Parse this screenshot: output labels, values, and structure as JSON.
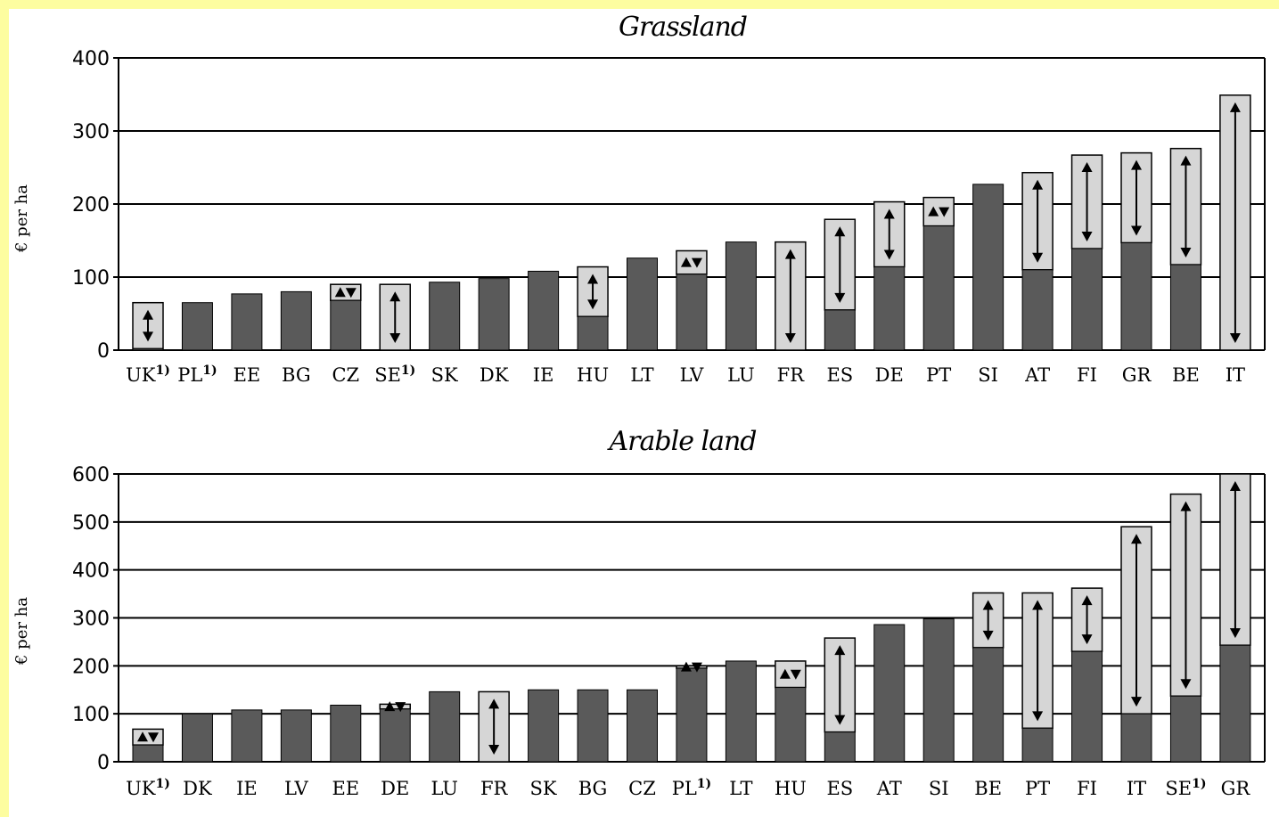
{
  "chart_data": [
    {
      "type": "bar",
      "title": "Grassland",
      "ylabel": "€ per ha",
      "ylim": [
        0,
        400
      ],
      "yticks": [
        0,
        100,
        200,
        300,
        400
      ],
      "grid": true,
      "categories": [
        {
          "label": "UK",
          "sup": "1)",
          "min": 2,
          "max": 65
        },
        {
          "label": "PL",
          "sup": "1)",
          "min": 65,
          "max": 65
        },
        {
          "label": "EE",
          "sup": "",
          "min": 77,
          "max": 77
        },
        {
          "label": "BG",
          "sup": "",
          "min": 80,
          "max": 80
        },
        {
          "label": "CZ",
          "sup": "",
          "min": 68,
          "max": 90
        },
        {
          "label": "SE",
          "sup": "1)",
          "min": 0,
          "max": 90
        },
        {
          "label": "SK",
          "sup": "",
          "min": 93,
          "max": 93
        },
        {
          "label": "DK",
          "sup": "",
          "min": 98,
          "max": 98
        },
        {
          "label": "IE",
          "sup": "",
          "min": 108,
          "max": 108
        },
        {
          "label": "HU",
          "sup": "",
          "min": 46,
          "max": 114
        },
        {
          "label": "LT",
          "sup": "",
          "min": 126,
          "max": 126
        },
        {
          "label": "LV",
          "sup": "",
          "min": 104,
          "max": 136
        },
        {
          "label": "LU",
          "sup": "",
          "min": 148,
          "max": 148
        },
        {
          "label": "FR",
          "sup": "",
          "min": 0,
          "max": 148
        },
        {
          "label": "ES",
          "sup": "",
          "min": 55,
          "max": 179
        },
        {
          "label": "DE",
          "sup": "",
          "min": 114,
          "max": 203
        },
        {
          "label": "PT",
          "sup": "",
          "min": 170,
          "max": 209
        },
        {
          "label": "SI",
          "sup": "",
          "min": 227,
          "max": 227
        },
        {
          "label": "AT",
          "sup": "",
          "min": 110,
          "max": 243
        },
        {
          "label": "FI",
          "sup": "",
          "min": 139,
          "max": 267
        },
        {
          "label": "GR",
          "sup": "",
          "min": 147,
          "max": 270
        },
        {
          "label": "BE",
          "sup": "",
          "min": 117,
          "max": 276
        },
        {
          "label": "IT",
          "sup": "",
          "min": 0,
          "max": 349
        }
      ]
    },
    {
      "type": "bar",
      "title": "Arable land",
      "ylabel": "€ per ha",
      "ylim": [
        0,
        600
      ],
      "yticks": [
        0,
        100,
        200,
        300,
        400,
        500,
        600
      ],
      "grid": true,
      "categories": [
        {
          "label": "UK",
          "sup": "1)",
          "min": 35,
          "max": 68
        },
        {
          "label": "DK",
          "sup": "",
          "min": 100,
          "max": 100
        },
        {
          "label": "IE",
          "sup": "",
          "min": 108,
          "max": 108
        },
        {
          "label": "LV",
          "sup": "",
          "min": 108,
          "max": 108
        },
        {
          "label": "EE",
          "sup": "",
          "min": 118,
          "max": 118
        },
        {
          "label": "DE",
          "sup": "",
          "min": 110,
          "max": 120
        },
        {
          "label": "LU",
          "sup": "",
          "min": 146,
          "max": 146
        },
        {
          "label": "FR",
          "sup": "",
          "min": 146,
          "max": 146,
          "range_only": true
        },
        {
          "label": "SK",
          "sup": "",
          "min": 150,
          "max": 150
        },
        {
          "label": "BG",
          "sup": "",
          "min": 150,
          "max": 150
        },
        {
          "label": "CZ",
          "sup": "",
          "min": 150,
          "max": 150
        },
        {
          "label": "PL",
          "sup": "1)",
          "min": 195,
          "max": 200
        },
        {
          "label": "LT",
          "sup": "",
          "min": 210,
          "max": 210
        },
        {
          "label": "HU",
          "sup": "",
          "min": 155,
          "max": 210
        },
        {
          "label": "ES",
          "sup": "",
          "min": 62,
          "max": 258
        },
        {
          "label": "AT",
          "sup": "",
          "min": 286,
          "max": 286
        },
        {
          "label": "SI",
          "sup": "",
          "min": 298,
          "max": 298
        },
        {
          "label": "BE",
          "sup": "",
          "min": 238,
          "max": 352
        },
        {
          "label": "PT",
          "sup": "",
          "min": 70,
          "max": 352
        },
        {
          "label": "FI",
          "sup": "",
          "min": 230,
          "max": 362
        },
        {
          "label": "IT",
          "sup": "",
          "min": 100,
          "max": 490
        },
        {
          "label": "SE",
          "sup": "1)",
          "min": 137,
          "max": 558
        },
        {
          "label": "GR",
          "sup": "",
          "min": 243,
          "max": 600
        }
      ]
    }
  ],
  "colors": {
    "background_border": "#fdfda0",
    "base_bar": "#5a5a5a",
    "range_bar": "#d6d6d6"
  }
}
